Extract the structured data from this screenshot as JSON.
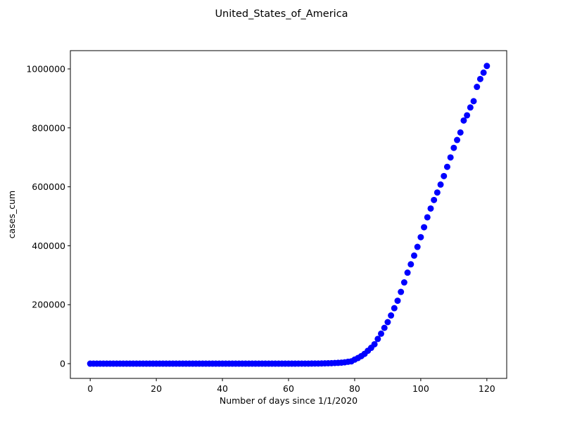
{
  "chart_data": {
    "type": "scatter",
    "title": "United_States_of_America",
    "xlabel": "Number of days since 1/1/2020",
    "ylabel": "cases_cum",
    "xlim": [
      -6,
      126
    ],
    "ylim": [
      -50000,
      1062000
    ],
    "xticks": [
      0,
      20,
      40,
      60,
      80,
      100,
      120
    ],
    "yticks": [
      0,
      200000,
      400000,
      600000,
      800000,
      1000000
    ],
    "xtick_labels": [
      "0",
      "20",
      "40",
      "60",
      "80",
      "100",
      "120"
    ],
    "ytick_labels": [
      "0",
      "200000",
      "400000",
      "600000",
      "800000",
      "1000000"
    ],
    "grid": false,
    "marker_color": "#0000ff",
    "x": [
      0,
      1,
      2,
      3,
      4,
      5,
      6,
      7,
      8,
      9,
      10,
      11,
      12,
      13,
      14,
      15,
      16,
      17,
      18,
      19,
      20,
      21,
      22,
      23,
      24,
      25,
      26,
      27,
      28,
      29,
      30,
      31,
      32,
      33,
      34,
      35,
      36,
      37,
      38,
      39,
      40,
      41,
      42,
      43,
      44,
      45,
      46,
      47,
      48,
      49,
      50,
      51,
      52,
      53,
      54,
      55,
      56,
      57,
      58,
      59,
      60,
      61,
      62,
      63,
      64,
      65,
      66,
      67,
      68,
      69,
      70,
      71,
      72,
      73,
      74,
      75,
      76,
      77,
      78,
      79,
      80,
      81,
      82,
      83,
      84,
      85,
      86,
      87,
      88,
      89,
      90,
      91,
      92,
      93,
      94,
      95,
      96,
      97,
      98,
      99,
      100,
      101,
      102,
      103,
      104,
      105,
      106,
      107,
      108,
      109,
      110,
      111,
      112,
      113,
      114,
      115,
      116,
      117,
      118,
      119,
      120
    ],
    "y": [
      0,
      0,
      0,
      0,
      0,
      0,
      0,
      0,
      0,
      0,
      0,
      0,
      0,
      0,
      0,
      0,
      0,
      0,
      0,
      0,
      0,
      1,
      1,
      1,
      2,
      3,
      5,
      5,
      5,
      5,
      6,
      7,
      8,
      11,
      11,
      11,
      12,
      12,
      12,
      12,
      12,
      13,
      13,
      14,
      15,
      15,
      15,
      15,
      15,
      15,
      15,
      15,
      35,
      35,
      35,
      53,
      57,
      60,
      60,
      62,
      64,
      70,
      88,
      103,
      125,
      159,
      233,
      338,
      433,
      554,
      754,
      1025,
      1300,
      1700,
      2200,
      2700,
      3500,
      4600,
      6400,
      7800,
      13700,
      19100,
      25500,
      33300,
      43800,
      53700,
      65800,
      83800,
      101700,
      121500,
      140900,
      163500,
      188200,
      213400,
      243400,
      275600,
      308800,
      337100,
      366600,
      396200,
      429100,
      462800,
      496500,
      526400,
      555300,
      580600,
      607600,
      636400,
      667800,
      699700,
      732200,
      758800,
      784300,
      825000,
      842600,
      869200,
      890500,
      939000,
      965800,
      987300,
      1010000
    ]
  }
}
